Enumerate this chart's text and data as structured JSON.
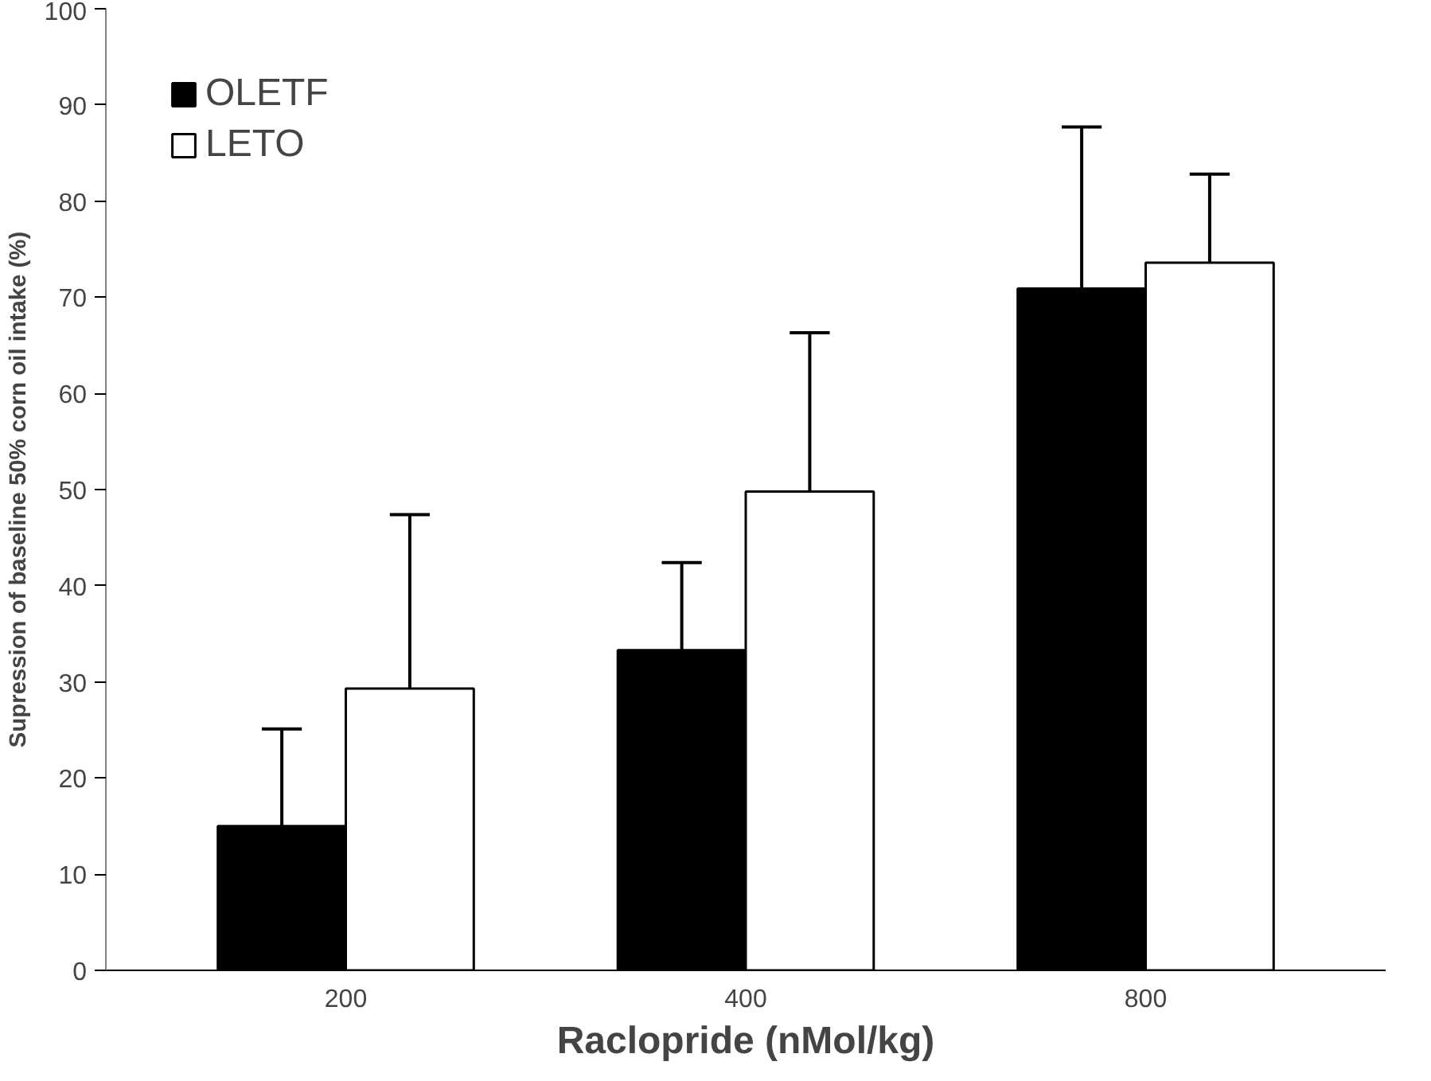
{
  "chart_data": {
    "type": "bar",
    "xlabel": "Raclopride (nMol/kg)",
    "ylabel": "Supression of baseline 50% corn oil intake (%)",
    "categories": [
      "200",
      "400",
      "800"
    ],
    "series": [
      {
        "name": "OLETF",
        "color": "#000000",
        "values": [
          15.0,
          33.3,
          70.9
        ],
        "errors": [
          [
            15.0,
            25.1
          ],
          [
            33.3,
            42.4
          ],
          [
            70.9,
            87.7
          ]
        ]
      },
      {
        "name": "LETO",
        "color": "#ffffff",
        "values": [
          29.3,
          49.8,
          73.6
        ],
        "errors": [
          [
            29.3,
            47.4
          ],
          [
            49.8,
            66.3
          ],
          [
            73.6,
            82.8
          ]
        ]
      }
    ],
    "ylim": [
      0,
      100
    ],
    "yticks": [
      0,
      10,
      20,
      30,
      40,
      50,
      60,
      70,
      80,
      90,
      100
    ],
    "grid": false,
    "legend": "top left"
  }
}
